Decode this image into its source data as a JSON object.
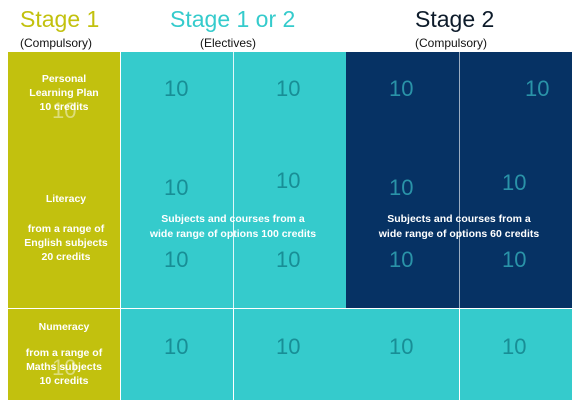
{
  "header": {
    "stage1_title": "Stage 1",
    "stage1_sub": "(Compulsory)",
    "stage12_title": "Stage 1 or 2",
    "stage12_sub": "(Electives)",
    "stage2_title": "Stage 2",
    "stage2_sub": "(Compulsory)"
  },
  "rows": {
    "plp": {
      "line1": "Personal",
      "line2": "Learning Plan",
      "line3": "10 credits"
    },
    "literacy": {
      "title": "Literacy",
      "line1": "from a range of",
      "line2": "English subjects",
      "line3": "20 credits"
    },
    "numeracy": {
      "title": "Numeracy",
      "line1": "from a range of",
      "line2": "Maths subjects",
      "line3": "10 credits"
    }
  },
  "electives": {
    "stage12_line1": "Subjects and courses from a",
    "stage12_line2": "wide range of options 100 credits",
    "stage2_line1": "Subjects and courses from a",
    "stage2_line2": "wide range of options 60 credits"
  },
  "credit_value": "10",
  "colors": {
    "stage1": "#c2c10e",
    "stage12": "#35cbcc",
    "stage2": "#063264"
  }
}
